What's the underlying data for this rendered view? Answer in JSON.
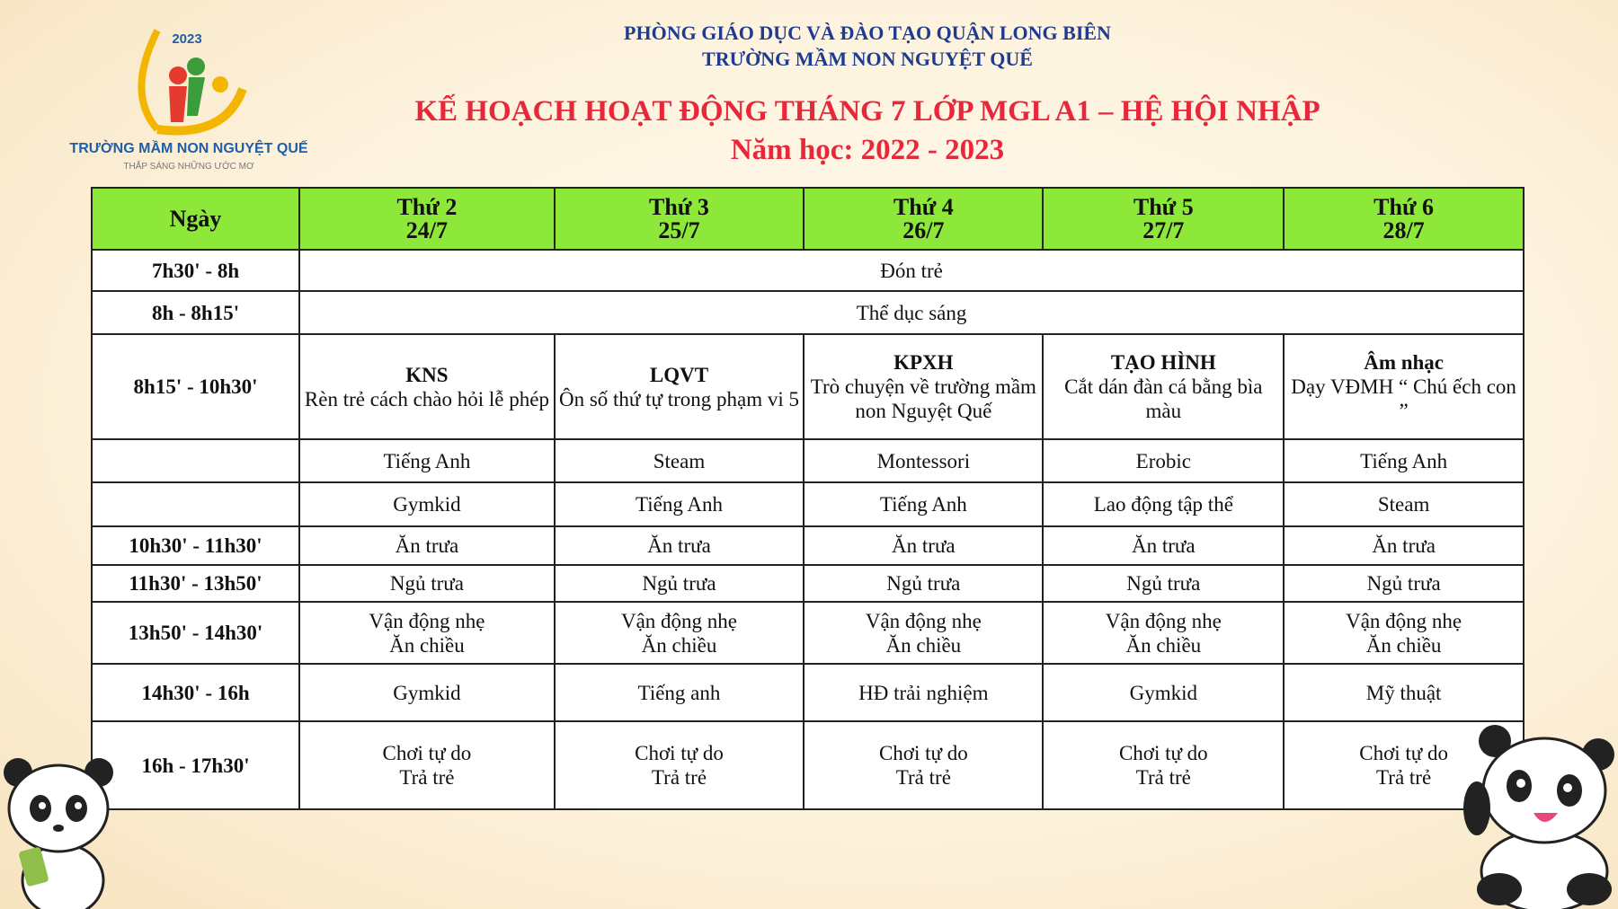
{
  "logo": {
    "year": "2023",
    "name": "TRƯỜNG MẦM NON NGUYỆT QUẾ",
    "tagline": "THẮP SÁNG NHỮNG ƯỚC MƠ"
  },
  "header": {
    "department": "PHÒNG GIÁO DỤC VÀ ĐÀO TẠO QUẬN LONG BIÊN",
    "school": "TRƯỜNG MẦM NON NGUYỆT QUẾ",
    "title": "KẾ HOẠCH HOẠT ĐỘNG THÁNG 7 LỚP MGL A1 – HỆ HỘI NHẬP",
    "year": "Năm học: 2022 - 2023"
  },
  "colors": {
    "header_bg": "#8ee83a",
    "title": "#e8283a",
    "department": "#1f3b8f"
  },
  "table": {
    "corner": "Ngày",
    "days": [
      {
        "day": "Thứ 2",
        "date": "24/7"
      },
      {
        "day": "Thứ 3",
        "date": "25/7"
      },
      {
        "day": "Thứ 4",
        "date": "26/7"
      },
      {
        "day": "Thứ 5",
        "date": "27/7"
      },
      {
        "day": "Thứ 6",
        "date": "28/7"
      }
    ],
    "span_rows": [
      {
        "time": "7h30' - 8h",
        "activity": "Đón trẻ"
      },
      {
        "time": "8h - 8h15'",
        "activity": "Thể dục sáng"
      }
    ],
    "lessons": {
      "time": "8h15' - 10h30'",
      "cells": [
        {
          "subject": "KNS",
          "detail": "Rèn trẻ cách chào hỏi lễ phép"
        },
        {
          "subject": "LQVT",
          "detail": "Ôn số thứ tự trong phạm vi 5"
        },
        {
          "subject": "KPXH",
          "detail": "Trò chuyện về trường mầm non Nguyệt Quế"
        },
        {
          "subject": "TẠO HÌNH",
          "detail": "Cắt dán đàn cá bằng bìa màu"
        },
        {
          "subject": "Âm nhạc",
          "detail": "Dạy VĐMH “ Chú ếch con ”"
        }
      ]
    },
    "rows": [
      {
        "time": "",
        "cells": [
          "Tiếng Anh",
          "Steam",
          "Montessori",
          "Erobic",
          "Tiếng Anh"
        ]
      },
      {
        "time": "",
        "cells": [
          "Gymkid",
          "Tiếng Anh",
          "Tiếng Anh",
          "Lao động tập thể",
          "Steam"
        ]
      },
      {
        "time": "10h30' - 11h30'",
        "cells": [
          "Ăn trưa",
          "Ăn trưa",
          "Ăn trưa",
          "Ăn trưa",
          "Ăn trưa"
        ]
      },
      {
        "time": "11h30' - 13h50'",
        "cells": [
          "Ngủ trưa",
          "Ngủ trưa",
          "Ngủ trưa",
          "Ngủ trưa",
          "Ngủ trưa"
        ]
      }
    ],
    "two_line_rows": [
      {
        "time": "13h50' - 14h30'",
        "cells": [
          [
            "Vận động nhẹ",
            "Ăn chiều"
          ],
          [
            "Vận động nhẹ",
            "Ăn chiều"
          ],
          [
            "Vận động nhẹ",
            "Ăn chiều"
          ],
          [
            "Vận động nhẹ",
            "Ăn chiều"
          ],
          [
            "Vận động nhẹ",
            "Ăn chiều"
          ]
        ]
      }
    ],
    "afternoon": {
      "time": "14h30' - 16h",
      "cells": [
        "Gymkid",
        "Tiếng anh",
        "HĐ trải nghiệm",
        "Gymkid",
        "Mỹ thuật"
      ]
    },
    "closing": {
      "time": "16h - 17h30'",
      "cells": [
        [
          "Chơi tự do",
          "Trả trẻ"
        ],
        [
          "Chơi tự do",
          "Trả trẻ"
        ],
        [
          "Chơi tự do",
          "Trả trẻ"
        ],
        [
          "Chơi tự do",
          "Trả trẻ"
        ],
        [
          "Chơi tự do",
          "Trả trẻ"
        ]
      ]
    }
  }
}
